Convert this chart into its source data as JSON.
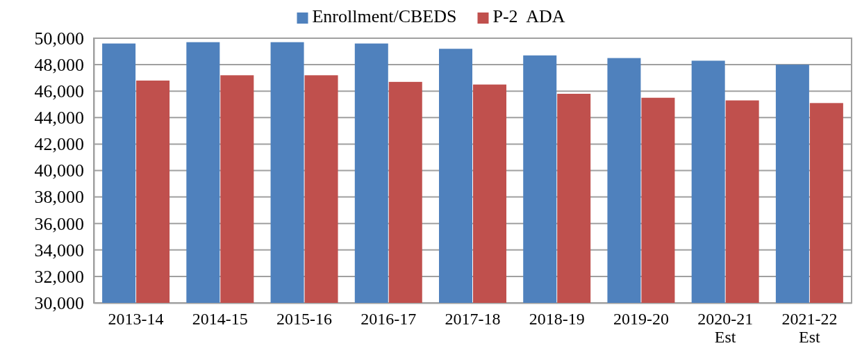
{
  "chart_data": {
    "type": "bar",
    "categories": [
      "2013-14",
      "2014-15",
      "2015-16",
      "2016-17",
      "2017-18",
      "2018-19",
      "2019-20",
      "2020-21 Est",
      "2021-22 Est"
    ],
    "series": [
      {
        "name": "Enrollment/CBEDS",
        "color": "#4f81bd",
        "values": [
          49600,
          49700,
          49700,
          49600,
          49200,
          48700,
          48500,
          48300,
          48000
        ]
      },
      {
        "name": "P-2  ADA",
        "color": "#c0504d",
        "values": [
          46800,
          47200,
          47200,
          46700,
          46500,
          45800,
          45500,
          45300,
          45100
        ]
      }
    ],
    "ylim": [
      30000,
      50000
    ],
    "yticks": [
      {
        "value": 30000,
        "label": "30,000"
      },
      {
        "value": 32000,
        "label": "32,000"
      },
      {
        "value": 34000,
        "label": "34,000"
      },
      {
        "value": 36000,
        "label": "36,000"
      },
      {
        "value": 38000,
        "label": "38,000"
      },
      {
        "value": 40000,
        "label": "40,000"
      },
      {
        "value": 42000,
        "label": "42,000"
      },
      {
        "value": 44000,
        "label": "44,000"
      },
      {
        "value": 46000,
        "label": "46,000"
      },
      {
        "value": 48000,
        "label": "48,000"
      },
      {
        "value": 50000,
        "label": "50,000"
      }
    ],
    "grid": "y",
    "legend": "top"
  }
}
